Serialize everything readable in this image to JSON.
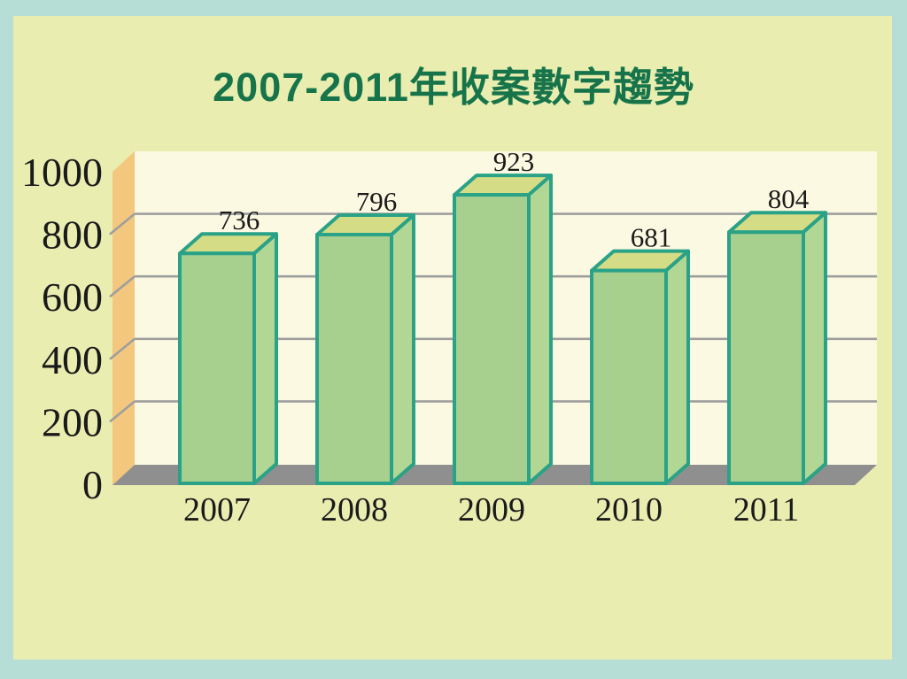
{
  "slide": {
    "background_outer": "#b7ded6",
    "background_inner": "#e9edb0"
  },
  "chart_data": {
    "type": "bar",
    "projection": "3d",
    "title": "2007-2011年收案數字趨勢",
    "title_color": "#17744a",
    "categories": [
      "2007",
      "2008",
      "2009",
      "2010",
      "2011"
    ],
    "values": [
      736,
      796,
      923,
      681,
      804
    ],
    "data_labels": [
      "736",
      "796",
      "923",
      "681",
      "804"
    ],
    "xlabel": "",
    "ylabel": "",
    "ylim": [
      0,
      1000
    ],
    "y_ticks": [
      0,
      200,
      400,
      600,
      800,
      1000
    ],
    "grid": true,
    "legend_position": "none",
    "colors": {
      "bar_front": "#a7cf8e",
      "bar_side": "#b2d794",
      "bar_top": "#d5dc86",
      "bar_outline": "#2aa287",
      "wall_back": "#fcf9e2",
      "wall_side": "#f3c87e",
      "floor": "#8f8f8f",
      "gridline": "#9e9e9e",
      "text": "#1a1a1a"
    }
  }
}
